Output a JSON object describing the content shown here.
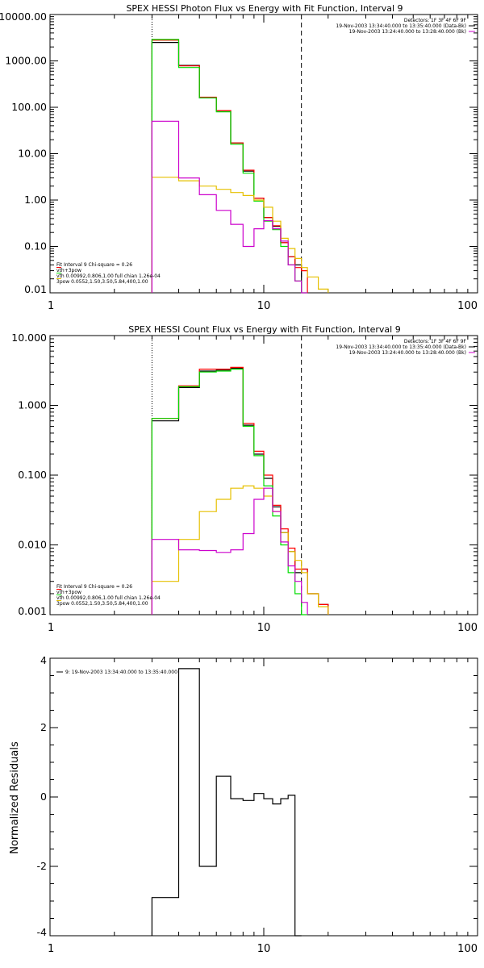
{
  "chart_data": [
    {
      "type": "line",
      "title": "SPEX HESSI Photon Flux vs Energy with Fit Function, Interval 9",
      "xlabel": "",
      "ylabel": "",
      "x_scale": "log",
      "y_scale": "log",
      "xlim": [
        1,
        100
      ],
      "ylim": [
        0.01,
        10000
      ],
      "x_ticks": [
        1,
        10,
        100
      ],
      "x_tick_labels": [
        "1",
        "10",
        "100"
      ],
      "y_ticks": [
        0.01,
        0.1,
        1,
        10,
        100,
        1000,
        10000
      ],
      "y_tick_labels": [
        "0.01",
        "0.10",
        "1.00",
        "10.00",
        "100.00",
        "1000.00",
        "10000.00"
      ],
      "info_lines": [
        "Detectors: 1F 3F 4F 6F 9F",
        "19-Nov-2003 13:34:40.000 to 13:35:40.000 (Data-Bk)",
        "19-Nov-2003 13:24:40.000 to 13:28:40.000 (Bk)"
      ],
      "info_line_colors": [
        "",
        "#000000",
        "#cc00cc"
      ],
      "fit_lines": [
        "Fit Interval 9   Chi-square = 0.26",
        "vth+3pow",
        "vth 0.00992,0.806,1.00  full chian 1.26e-04",
        "3pow 0.0552,1.50,3.50,5.84,400,1.00"
      ],
      "fit_line_colors": [
        "",
        "#ff0000",
        "#00dd00",
        "#e6c000"
      ],
      "vlines": [
        {
          "x": 3.0,
          "style": "dotted",
          "color": "#000000"
        },
        {
          "x": 15.0,
          "style": "dashed",
          "color": "#000000"
        }
      ],
      "bin_edges": [
        3,
        4,
        5,
        6,
        7,
        8,
        9,
        10,
        11,
        12,
        13,
        14,
        15,
        16,
        18,
        20
      ],
      "series": [
        {
          "color": "#000000",
          "values": [
            2500,
            800,
            160,
            85,
            17,
            4.2,
            1.1,
            0.42,
            0.27,
            0.12,
            0.06,
            0.04
          ]
        },
        {
          "color": "#ff0000",
          "values": [
            2800,
            780,
            165,
            85,
            17,
            4.4,
            1.1,
            0.42,
            0.28,
            0.12,
            0.06,
            0.035,
            0.03
          ]
        },
        {
          "color": "#00dd00",
          "values": [
            2900,
            720,
            160,
            80,
            16,
            3.8,
            0.95,
            0.35,
            0.23,
            0.1,
            0.04,
            0.018,
            0.008
          ]
        },
        {
          "color": "#e6c000",
          "values": [
            3.1,
            2.6,
            2.0,
            1.7,
            1.45,
            1.25,
            1.0,
            0.7,
            0.35,
            0.15,
            0.09,
            0.055,
            0.035,
            0.022,
            0.012
          ]
        },
        {
          "color": "#cc00cc",
          "values": [
            50,
            3.0,
            1.3,
            0.6,
            0.3,
            0.1,
            0.24,
            0.36,
            0.24,
            0.13,
            0.04,
            0.018,
            0.008
          ]
        }
      ]
    },
    {
      "type": "line",
      "title": "SPEX HESSI Count Flux vs Energy with Fit Function, Interval 9",
      "xlabel": "",
      "ylabel": "",
      "x_scale": "log",
      "y_scale": "log",
      "xlim": [
        1,
        100
      ],
      "ylim": [
        0.001,
        10
      ],
      "x_ticks": [
        1,
        10,
        100
      ],
      "x_tick_labels": [
        "1",
        "10",
        "100"
      ],
      "y_ticks": [
        0.001,
        0.01,
        0.1,
        1,
        10
      ],
      "y_tick_labels": [
        "0.001",
        "0.010",
        "0.100",
        "1.000",
        "10.000"
      ],
      "info_lines": [
        "Detectors: 1F 3F 4F 6F 9F",
        "19-Nov-2003 13:34:40.000 to 13:35:40.000 (Data-Bk)",
        "19-Nov-2003 13:24:40.000 to 13:28:40.000 (Bk)"
      ],
      "info_line_colors": [
        "",
        "#000000",
        "#cc00cc"
      ],
      "fit_lines": [
        "Fit Interval 9   Chi-square = 0.26",
        "vth+3pow",
        "vth 0.00992,0.806,1.00  full chian 1.26e-04",
        "3pow 0.0552,1.50,3.50,5.84,400,1.00"
      ],
      "fit_line_colors": [
        "",
        "#ff0000",
        "#00dd00",
        "#e6c000"
      ],
      "vlines": [
        {
          "x": 3.0,
          "style": "dotted",
          "color": "#000000"
        },
        {
          "x": 15.0,
          "style": "dashed",
          "color": "#000000"
        }
      ],
      "bin_edges": [
        3,
        4,
        5,
        6,
        7,
        8,
        9,
        10,
        11,
        12,
        13,
        14,
        15,
        16,
        18,
        20
      ],
      "series": [
        {
          "color": "#000000",
          "values": [
            0.6,
            1.8,
            3.1,
            3.2,
            3.4,
            0.52,
            0.2,
            0.09,
            0.035,
            0.015,
            0.008,
            0.004,
            0.0045,
            0.002,
            0.0014
          ]
        },
        {
          "color": "#ff0000",
          "values": [
            0.65,
            1.9,
            3.3,
            3.3,
            3.5,
            0.55,
            0.22,
            0.1,
            0.037,
            0.017,
            0.009,
            0.0045,
            0.0045,
            0.002,
            0.0014
          ]
        },
        {
          "color": "#00dd00",
          "values": [
            0.65,
            1.85,
            3.0,
            3.1,
            3.3,
            0.5,
            0.19,
            0.07,
            0.026,
            0.01,
            0.004,
            0.002,
            0.001
          ]
        },
        {
          "color": "#e6c000",
          "values": [
            0.003,
            0.012,
            0.03,
            0.045,
            0.065,
            0.07,
            0.065,
            0.05,
            0.03,
            0.015,
            0.008,
            0.006,
            0.004,
            0.002,
            0.0013
          ]
        },
        {
          "color": "#cc00cc",
          "values": [
            0.012,
            0.0085,
            0.0083,
            0.0078,
            0.0085,
            0.0145,
            0.045,
            0.065,
            0.03,
            0.011,
            0.005,
            0.003,
            0.0015
          ]
        }
      ]
    },
    {
      "type": "line",
      "title": "",
      "xlabel": "",
      "ylabel": "Normalized Residuals",
      "x_scale": "log",
      "y_scale": "linear",
      "xlim": [
        1,
        100
      ],
      "ylim": [
        -4,
        4
      ],
      "x_ticks": [
        1,
        10,
        100
      ],
      "x_tick_labels": [
        "1",
        "10",
        "100"
      ],
      "y_ticks": [
        -4,
        -2,
        0,
        2,
        4
      ],
      "y_tick_labels": [
        "-4",
        "-2",
        "0",
        "2",
        "4"
      ],
      "legend": "9: 19-Nov-2003 13:34:40.000 to 13:35:40.000",
      "bin_edges": [
        3,
        4,
        5,
        6,
        7,
        8,
        9,
        10,
        11,
        12,
        13,
        14,
        15
      ],
      "series": [
        {
          "color": "#000000",
          "values": [
            -2.9,
            3.7,
            -2.0,
            0.6,
            -0.05,
            -0.1,
            0.1,
            -0.05,
            -0.2,
            -0.05,
            0.05,
            -4
          ]
        }
      ]
    }
  ]
}
